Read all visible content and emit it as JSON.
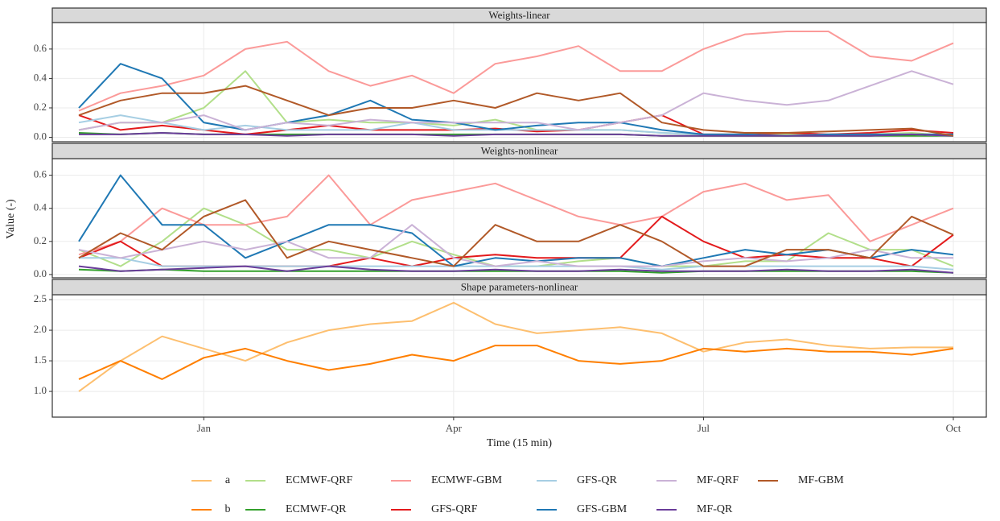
{
  "chart_data": [
    {
      "type": "line",
      "title": "Weights-linear",
      "y_label": "Value (-)",
      "ylim": [
        -0.03,
        0.78
      ],
      "yticks": [
        {
          "value": 0,
          "label": "0.0"
        },
        {
          "value": 0.2,
          "label": "0.2"
        },
        {
          "value": 0.4,
          "label": "0.4"
        },
        {
          "value": 0.6,
          "label": "0.6"
        }
      ],
      "grid": true,
      "series": [
        {
          "color": "#b2df8a",
          "values": [
            0.05,
            0.1,
            0.1,
            0.2,
            0.45,
            0.1,
            0.12,
            0.1,
            0.1,
            0.08,
            0.12,
            0.05,
            0.05,
            0.05,
            0.03,
            0.02,
            0.02,
            0.02,
            0.02,
            0.02,
            0.03,
            0.01
          ]
        },
        {
          "color": "#33a02c",
          "values": [
            0.03,
            0.02,
            0.03,
            0.02,
            0.02,
            0.02,
            0.02,
            0.02,
            0.02,
            0.02,
            0.02,
            0.02,
            0.02,
            0.02,
            0.01,
            0.01,
            0.01,
            0.01,
            0.01,
            0.01,
            0.01,
            0.01
          ]
        },
        {
          "color": "#fb9a99",
          "values": [
            0.18,
            0.3,
            0.35,
            0.42,
            0.6,
            0.65,
            0.45,
            0.35,
            0.42,
            0.3,
            0.5,
            0.55,
            0.62,
            0.45,
            0.45,
            0.6,
            0.7,
            0.72,
            0.72,
            0.55,
            0.52,
            0.64
          ]
        },
        {
          "color": "#e31a1c",
          "values": [
            0.15,
            0.05,
            0.08,
            0.05,
            0.02,
            0.05,
            0.08,
            0.05,
            0.05,
            0.05,
            0.06,
            0.04,
            0.05,
            0.1,
            0.15,
            0.02,
            0.02,
            0.03,
            0.02,
            0.03,
            0.05,
            0.03
          ]
        },
        {
          "color": "#a6cee3",
          "values": [
            0.1,
            0.15,
            0.1,
            0.05,
            0.08,
            0.05,
            0.05,
            0.05,
            0.1,
            0.05,
            0.05,
            0.05,
            0.05,
            0.05,
            0.03,
            0.02,
            0.02,
            0.01,
            0.02,
            0.02,
            0.02,
            0.01
          ]
        },
        {
          "color": "#1f78b4",
          "values": [
            0.2,
            0.5,
            0.4,
            0.1,
            0.05,
            0.1,
            0.15,
            0.25,
            0.12,
            0.1,
            0.05,
            0.08,
            0.1,
            0.1,
            0.05,
            0.02,
            0.02,
            0.01,
            0.02,
            0.02,
            0.02,
            0.02
          ]
        },
        {
          "color": "#cab2d6",
          "values": [
            0.05,
            0.1,
            0.1,
            0.15,
            0.05,
            0.1,
            0.08,
            0.12,
            0.1,
            0.1,
            0.1,
            0.1,
            0.05,
            0.1,
            0.15,
            0.3,
            0.25,
            0.22,
            0.25,
            0.35,
            0.45,
            0.36
          ]
        },
        {
          "color": "#6a3d9a",
          "values": [
            0.02,
            0.02,
            0.03,
            0.02,
            0.02,
            0.01,
            0.02,
            0.02,
            0.02,
            0.01,
            0.02,
            0.02,
            0.02,
            0.02,
            0.01,
            0.01,
            0.01,
            0.01,
            0.01,
            0.01,
            0.02,
            0.01
          ]
        },
        {
          "color": "#b15928",
          "values": [
            0.15,
            0.25,
            0.3,
            0.3,
            0.35,
            0.25,
            0.15,
            0.2,
            0.2,
            0.25,
            0.2,
            0.3,
            0.25,
            0.3,
            0.1,
            0.05,
            0.03,
            0.03,
            0.04,
            0.05,
            0.06,
            0.01
          ]
        }
      ]
    },
    {
      "type": "line",
      "title": "Weights-nonlinear",
      "ylim": [
        -0.02,
        0.7
      ],
      "yticks": [
        {
          "value": 0,
          "label": "0.0"
        },
        {
          "value": 0.2,
          "label": "0.2"
        },
        {
          "value": 0.4,
          "label": "0.4"
        },
        {
          "value": 0.6,
          "label": "0.6"
        }
      ],
      "grid": true,
      "series": [
        {
          "name": "ECMWF-QRF",
          "color": "#b2df8a",
          "values": [
            0.15,
            0.05,
            0.2,
            0.4,
            0.3,
            0.15,
            0.15,
            0.1,
            0.2,
            0.12,
            0.05,
            0.05,
            0.08,
            0.1,
            0.05,
            0.05,
            0.08,
            0.08,
            0.25,
            0.15,
            0.15,
            0.05
          ]
        },
        {
          "name": "ECMWF-QR",
          "color": "#33a02c",
          "values": [
            0.03,
            0.02,
            0.03,
            0.02,
            0.02,
            0.02,
            0.02,
            0.02,
            0.02,
            0.02,
            0.02,
            0.02,
            0.02,
            0.02,
            0.01,
            0.02,
            0.02,
            0.02,
            0.02,
            0.02,
            0.02,
            0.01
          ]
        },
        {
          "name": "ECMWF-GBM",
          "color": "#fb9a99",
          "values": [
            0.12,
            0.2,
            0.4,
            0.3,
            0.3,
            0.35,
            0.6,
            0.3,
            0.45,
            0.5,
            0.55,
            0.45,
            0.35,
            0.3,
            0.35,
            0.5,
            0.55,
            0.45,
            0.48,
            0.2,
            0.3,
            0.4
          ]
        },
        {
          "name": "GFS-QRF",
          "color": "#e31a1c",
          "values": [
            0.1,
            0.2,
            0.05,
            0.05,
            0.05,
            0.05,
            0.05,
            0.1,
            0.05,
            0.1,
            0.12,
            0.1,
            0.1,
            0.1,
            0.35,
            0.2,
            0.1,
            0.12,
            0.1,
            0.1,
            0.05,
            0.24
          ]
        },
        {
          "name": "GFS-QR",
          "color": "#a6cee3",
          "values": [
            0.1,
            0.1,
            0.05,
            0.05,
            0.05,
            0.05,
            0.05,
            0.05,
            0.05,
            0.05,
            0.05,
            0.05,
            0.05,
            0.05,
            0.03,
            0.05,
            0.05,
            0.05,
            0.05,
            0.05,
            0.05,
            0.03
          ]
        },
        {
          "name": "GFS-GBM",
          "color": "#1f78b4",
          "values": [
            0.2,
            0.6,
            0.3,
            0.3,
            0.1,
            0.2,
            0.3,
            0.3,
            0.25,
            0.05,
            0.1,
            0.08,
            0.1,
            0.1,
            0.05,
            0.1,
            0.15,
            0.12,
            0.15,
            0.1,
            0.15,
            0.12
          ]
        },
        {
          "name": "MF-QRF",
          "color": "#cab2d6",
          "values": [
            0.15,
            0.1,
            0.15,
            0.2,
            0.15,
            0.2,
            0.1,
            0.1,
            0.3,
            0.1,
            0.05,
            0.08,
            0.05,
            0.05,
            0.05,
            0.08,
            0.1,
            0.08,
            0.1,
            0.15,
            0.1,
            0.1
          ]
        },
        {
          "name": "MF-QR",
          "color": "#6a3d9a",
          "values": [
            0.05,
            0.02,
            0.03,
            0.04,
            0.05,
            0.02,
            0.05,
            0.03,
            0.02,
            0.02,
            0.03,
            0.02,
            0.02,
            0.03,
            0.02,
            0.02,
            0.02,
            0.03,
            0.02,
            0.02,
            0.03,
            0.01
          ]
        },
        {
          "name": "MF-GBM",
          "color": "#b15928",
          "values": [
            0.1,
            0.25,
            0.15,
            0.35,
            0.45,
            0.1,
            0.2,
            0.15,
            0.1,
            0.05,
            0.3,
            0.2,
            0.2,
            0.3,
            0.2,
            0.05,
            0.05,
            0.15,
            0.15,
            0.1,
            0.35,
            0.24
          ]
        }
      ]
    },
    {
      "type": "line",
      "title": "Shape parameters-nonlinear",
      "x_label": "Time (15 min)",
      "categories": [
        null,
        null,
        null,
        "Jan",
        null,
        null,
        null,
        null,
        null,
        "Apr",
        null,
        null,
        null,
        null,
        null,
        "Jul",
        null,
        null,
        null,
        null,
        null,
        "Oct"
      ],
      "ylim": [
        0.58,
        2.58
      ],
      "yticks": [
        {
          "value": 1,
          "label": "1.0"
        },
        {
          "value": 1.5,
          "label": "1.5"
        },
        {
          "value": 2,
          "label": "2.0"
        },
        {
          "value": 2.5,
          "label": "2.5"
        }
      ],
      "grid": true,
      "series": [
        {
          "name": "a",
          "color": "#fdbf6f",
          "values": [
            1.0,
            1.5,
            1.9,
            1.7,
            1.5,
            1.8,
            2.0,
            2.1,
            2.15,
            2.45,
            2.1,
            1.95,
            2.0,
            2.05,
            1.95,
            1.65,
            1.8,
            1.85,
            1.75,
            1.7,
            1.72,
            1.72
          ]
        },
        {
          "name": "b",
          "color": "#ff7f00",
          "values": [
            1.2,
            1.5,
            1.2,
            1.55,
            1.7,
            1.5,
            1.35,
            1.45,
            1.6,
            1.5,
            1.75,
            1.75,
            1.5,
            1.45,
            1.5,
            1.7,
            1.65,
            1.7,
            1.65,
            1.65,
            1.6,
            1.7
          ]
        }
      ]
    }
  ]
}
